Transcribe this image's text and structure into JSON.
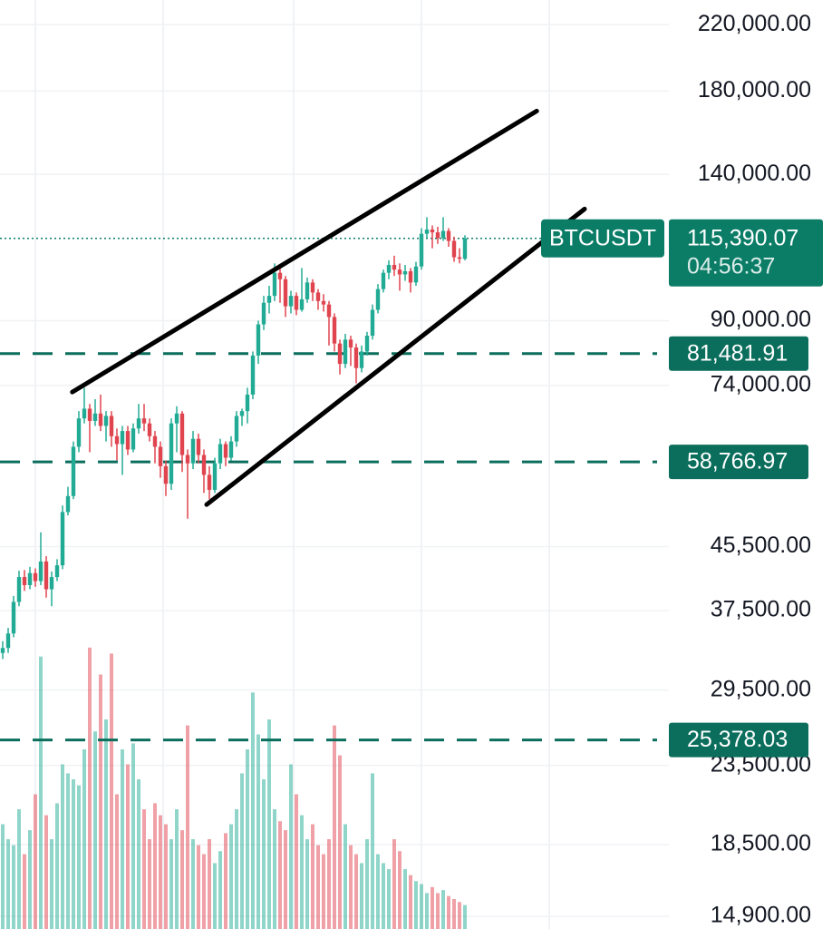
{
  "chart_data": {
    "type": "candlestick",
    "symbol": "BTCUSDT",
    "log_scale": true,
    "xlim": [
      -0.5,
      122.5
    ],
    "xgrid": [
      6,
      29.5,
      53.5,
      77,
      100.5
    ],
    "ylim": [
      14340,
      237000
    ],
    "yticks": [
      {
        "value": 220000,
        "label": "220,000.00"
      },
      {
        "value": 180000,
        "label": "180,000.00"
      },
      {
        "value": 140000,
        "label": "140,000.00"
      },
      {
        "value": 90000,
        "label": "90,000.00"
      },
      {
        "value": 74000,
        "label": "74,000.00"
      },
      {
        "value": 45500,
        "label": "45,500.00"
      },
      {
        "value": 37500,
        "label": "37,500.00"
      },
      {
        "value": 29500,
        "label": "29,500.00"
      },
      {
        "value": 23500,
        "label": "23,500.00"
      },
      {
        "value": 18500,
        "label": "18,500.00"
      },
      {
        "value": 14900,
        "label": "14,900.00"
      }
    ],
    "up_color": "#22ab94",
    "down_color": "#e0444f",
    "open": [
      33000,
      33500,
      35000,
      38500,
      41500,
      40500,
      42000,
      41000,
      43500,
      40000,
      41500,
      43000,
      50500,
      53000,
      61500,
      67000,
      69000,
      66500,
      68000,
      65500,
      67500,
      63500,
      62000,
      64500,
      61000,
      65000,
      67000,
      66000,
      63500,
      61500,
      58000,
      55000,
      66000,
      68000,
      60000,
      58500,
      63000,
      60000,
      56500,
      54000,
      58500,
      62000,
      59500,
      62500,
      67500,
      68500,
      72000,
      81000,
      89000,
      95000,
      97000,
      104000,
      102000,
      94000,
      97000,
      93000,
      96000,
      101000,
      98000,
      95500,
      94500,
      91000,
      84000,
      79000,
      85000,
      83000,
      78000,
      82000,
      86000,
      93000,
      99000,
      104000,
      106500,
      105000,
      103500,
      104500,
      101000,
      106000,
      117000,
      118500,
      117500,
      115500,
      118000,
      114500,
      109000,
      108500
    ],
    "high": [
      34200,
      35600,
      39200,
      42300,
      42400,
      42800,
      42600,
      47500,
      44200,
      42200,
      43800,
      51500,
      54500,
      62500,
      68500,
      73500,
      70000,
      71000,
      72000,
      68500,
      68500,
      65000,
      65500,
      65500,
      66000,
      70000,
      70000,
      67000,
      64500,
      62500,
      59000,
      67000,
      69500,
      68500,
      61000,
      64500,
      64000,
      61000,
      58000,
      59500,
      63000,
      62500,
      63500,
      68500,
      69000,
      73500,
      82000,
      90000,
      97000,
      100000,
      107000,
      106000,
      103000,
      98500,
      98000,
      105500,
      102500,
      102000,
      99000,
      97500,
      95500,
      92000,
      85000,
      86500,
      86000,
      84000,
      83500,
      87000,
      94500,
      100500,
      105000,
      108000,
      109500,
      107000,
      106500,
      105500,
      107500,
      119000,
      123000,
      120000,
      119500,
      123000,
      119000,
      116000,
      112000,
      116500
    ],
    "low": [
      32400,
      33000,
      34600,
      38000,
      39800,
      40000,
      40300,
      40500,
      39000,
      38000,
      41000,
      42500,
      50000,
      52500,
      60500,
      66000,
      60500,
      65500,
      64500,
      62500,
      61500,
      59000,
      56500,
      60000,
      60500,
      64000,
      64500,
      62500,
      58500,
      56000,
      53000,
      54000,
      60500,
      57000,
      49500,
      57500,
      58500,
      53500,
      52500,
      53500,
      57500,
      58000,
      59000,
      61500,
      65500,
      66000,
      71000,
      79000,
      87500,
      92000,
      95500,
      95000,
      91000,
      92000,
      91500,
      92500,
      95000,
      95500,
      93000,
      92500,
      83500,
      82000,
      76500,
      78000,
      78500,
      74500,
      77000,
      81000,
      85000,
      92000,
      98000,
      102000,
      103000,
      98500,
      101500,
      98000,
      100000,
      105000,
      115500,
      112000,
      113500,
      114500,
      112500,
      107500,
      107000,
      108000
    ],
    "close": [
      33500,
      35000,
      38500,
      41500,
      40500,
      42000,
      41000,
      43500,
      40000,
      41500,
      43000,
      50500,
      53000,
      61500,
      67000,
      69000,
      66500,
      68000,
      65500,
      67500,
      63500,
      62000,
      64500,
      61000,
      65000,
      67000,
      66000,
      63500,
      61500,
      58000,
      55000,
      66000,
      68000,
      60000,
      58500,
      63000,
      60000,
      56500,
      54000,
      58500,
      62000,
      59500,
      62500,
      67500,
      68500,
      72000,
      81000,
      89000,
      95000,
      97000,
      104000,
      102000,
      94000,
      97000,
      93000,
      96000,
      101000,
      98000,
      95500,
      94500,
      91000,
      84000,
      79000,
      85000,
      83000,
      78000,
      82000,
      86000,
      93000,
      99000,
      104000,
      106500,
      105000,
      103500,
      104500,
      101000,
      106000,
      117000,
      118500,
      117500,
      115500,
      118000,
      114500,
      109000,
      108500,
      115390.07
    ],
    "volume_lim": [
      0,
      100
    ],
    "volume": [
      35,
      30,
      28,
      40,
      25,
      33,
      45,
      91,
      38,
      30,
      42,
      55,
      52,
      50,
      48,
      60,
      94,
      66,
      85,
      70,
      92,
      45,
      60,
      55,
      62,
      50,
      40,
      30,
      42,
      38,
      35,
      30,
      40,
      33,
      68,
      30,
      28,
      25,
      30,
      22,
      26,
      32,
      35,
      40,
      52,
      60,
      79,
      65,
      50,
      70,
      40,
      36,
      33,
      55,
      45,
      38,
      30,
      35,
      28,
      25,
      30,
      68,
      58,
      35,
      28,
      25,
      22,
      30,
      52,
      25,
      22,
      20,
      30,
      26,
      20,
      18,
      16,
      15,
      12,
      14,
      12,
      13,
      11,
      10,
      9,
      8
    ],
    "price_line": {
      "value": 115390.07,
      "label": "115,390.07",
      "countdown": "04:56:37",
      "color": "#0b7d67"
    },
    "levels": [
      {
        "value": 81481.91,
        "label": "81,481.91"
      },
      {
        "value": 58766.97,
        "label": "58,766.97"
      },
      {
        "value": 25378.03,
        "label": "25,378.03"
      }
    ],
    "level_color": "#0b6e5c",
    "trendlines": [
      {
        "x": [
          12.8,
          98.2
        ],
        "y": [
          72550,
          169500
        ]
      },
      {
        "x": [
          37.5,
          107
        ],
        "y": [
          51650,
          126100
        ]
      }
    ]
  }
}
